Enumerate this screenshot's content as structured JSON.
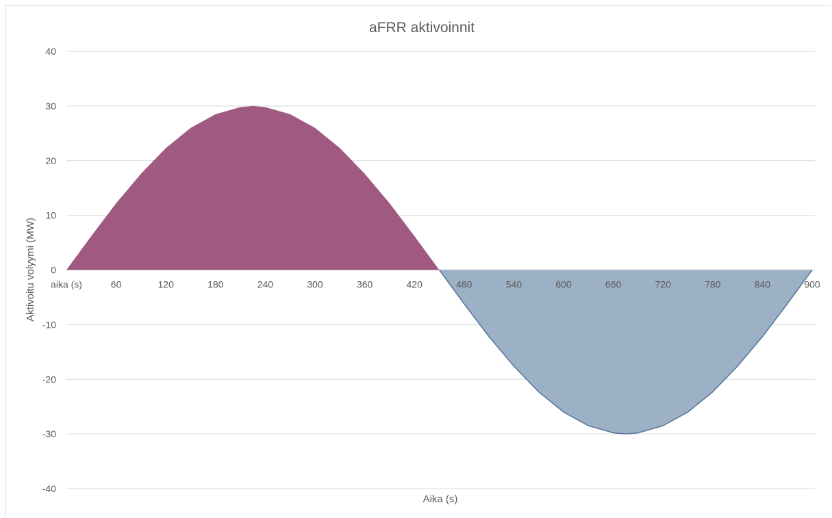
{
  "chart_data": {
    "type": "area",
    "title": "aFRR aktivoinnit",
    "xlabel": "Aika (s)",
    "ylabel": "Aktivoitu volyymi (MW)",
    "ylim": [
      -40,
      40
    ],
    "yticks": [
      40,
      30,
      20,
      10,
      0,
      -10,
      -20,
      -30,
      -40
    ],
    "xlim": [
      0,
      900
    ],
    "x_tick_labels": [
      "aika (s)",
      "60",
      "120",
      "180",
      "240",
      "300",
      "360",
      "420",
      "480",
      "540",
      "600",
      "660",
      "720",
      "780",
      "840",
      "900"
    ],
    "grid": true,
    "x": [
      0,
      30,
      60,
      90,
      120,
      150,
      180,
      210,
      225,
      240,
      270,
      300,
      330,
      360,
      390,
      420,
      450,
      480,
      510,
      540,
      570,
      600,
      630,
      660,
      675,
      690,
      720,
      750,
      780,
      810,
      840,
      870,
      900
    ],
    "series": [
      {
        "values": [
          0,
          6.2,
          12.2,
          17.6,
          22.3,
          26.0,
          28.5,
          29.8,
          30.0,
          29.8,
          28.5,
          26.0,
          22.3,
          17.6,
          12.2,
          6.2,
          0,
          -6.2,
          -12.2,
          -17.6,
          -22.3,
          -26.0,
          -28.5,
          -29.8,
          -30.0,
          -29.8,
          -28.5,
          -26.0,
          -22.3,
          -17.6,
          -12.2,
          -6.2,
          0
        ],
        "positive_color": "#a05a82",
        "negative_color": "#9db1c6",
        "line_color": "#5a7898"
      }
    ]
  }
}
